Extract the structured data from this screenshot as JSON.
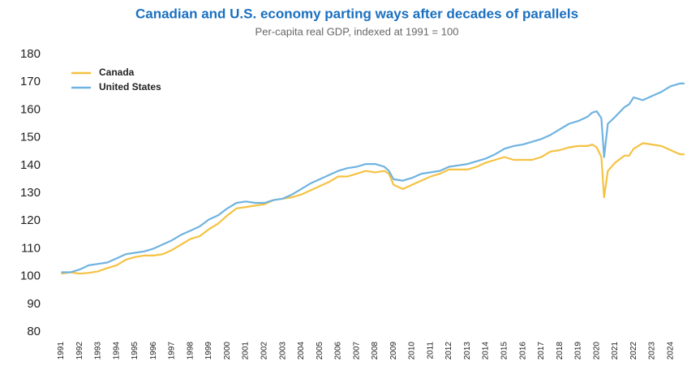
{
  "chart_data": {
    "type": "line",
    "title": "Canadian and U.S. economy parting ways after decades of parallels",
    "subtitle": "Per-capita real GDP, indexed at 1991 = 100",
    "x": [
      1991.0,
      1991.5,
      1992.0,
      1992.5,
      1993.0,
      1993.5,
      1994.0,
      1994.5,
      1995.0,
      1995.5,
      1996.0,
      1996.5,
      1997.0,
      1997.5,
      1998.0,
      1998.5,
      1999.0,
      1999.5,
      2000.0,
      2000.5,
      2001.0,
      2001.5,
      2002.0,
      2002.5,
      2003.0,
      2003.5,
      2004.0,
      2004.5,
      2005.0,
      2005.5,
      2006.0,
      2006.5,
      2007.0,
      2007.5,
      2008.0,
      2008.5,
      2008.75,
      2009.0,
      2009.5,
      2010.0,
      2010.5,
      2011.0,
      2011.5,
      2012.0,
      2012.5,
      2013.0,
      2013.5,
      2014.0,
      2014.5,
      2015.0,
      2015.5,
      2016.0,
      2016.5,
      2017.0,
      2017.5,
      2018.0,
      2018.5,
      2019.0,
      2019.5,
      2019.75,
      2020.0,
      2020.25,
      2020.4,
      2020.6,
      2021.0,
      2021.5,
      2021.75,
      2022.0,
      2022.5,
      2023.0,
      2023.5,
      2024.0,
      2024.5,
      2024.75
    ],
    "series": [
      {
        "name": "Canada",
        "color": "#f5c242",
        "values": [
          101,
          101.5,
          101,
          101.3,
          101.8,
          103,
          104,
          106,
          107,
          107.5,
          107.5,
          108,
          109.5,
          111.5,
          113.5,
          114.5,
          117,
          119,
          122,
          124.5,
          125,
          125.5,
          126,
          127.5,
          128,
          128.5,
          129.5,
          131,
          132.5,
          134,
          136,
          136,
          137,
          138,
          137.5,
          138,
          137,
          133,
          131.5,
          133,
          134.5,
          136,
          137,
          138.5,
          138.5,
          138.5,
          139.5,
          141,
          142,
          143,
          142,
          142,
          142,
          143,
          145,
          145.5,
          146.5,
          147,
          147,
          147.5,
          146.5,
          143,
          128.5,
          138,
          141,
          143.5,
          143.5,
          146,
          148,
          147.5,
          147,
          145.5,
          144,
          144
        ]
      },
      {
        "name": "United States",
        "color": "#6fb3e0",
        "values": [
          101.5,
          101.5,
          102.5,
          104,
          104.5,
          105,
          106.5,
          108,
          108.5,
          109,
          110,
          111.5,
          113,
          115,
          116.5,
          118,
          120.5,
          122,
          124.5,
          126.5,
          127,
          126.5,
          126.5,
          127.5,
          128,
          129.5,
          131.5,
          133.5,
          135,
          136.5,
          138,
          139,
          139.5,
          140.5,
          140.5,
          139.5,
          138,
          135,
          134.5,
          135.5,
          137,
          137.5,
          138,
          139.5,
          140,
          140.5,
          141.5,
          142.5,
          144,
          146,
          147,
          147.5,
          148.5,
          149.5,
          151,
          153,
          155,
          156,
          157.5,
          159,
          159.5,
          157,
          143,
          155,
          157.5,
          161,
          162,
          164.5,
          163.5,
          165,
          166.5,
          168.5,
          169.5,
          169.5
        ]
      }
    ],
    "xlim": [
      1990.5,
      2024.8
    ],
    "xticks": [
      1991,
      1992,
      1993,
      1994,
      1995,
      1996,
      1997,
      1998,
      1999,
      2000,
      2001,
      2002,
      2003,
      2004,
      2005,
      2006,
      2007,
      2008,
      2009,
      2010,
      2011,
      2012,
      2013,
      2014,
      2015,
      2016,
      2017,
      2018,
      2019,
      2020,
      2021,
      2022,
      2023,
      2024
    ],
    "ylim": [
      80,
      180
    ],
    "yticks": [
      80,
      90,
      100,
      110,
      120,
      130,
      140,
      150,
      160,
      170,
      180
    ],
    "grid": false,
    "legend": "top-left"
  }
}
